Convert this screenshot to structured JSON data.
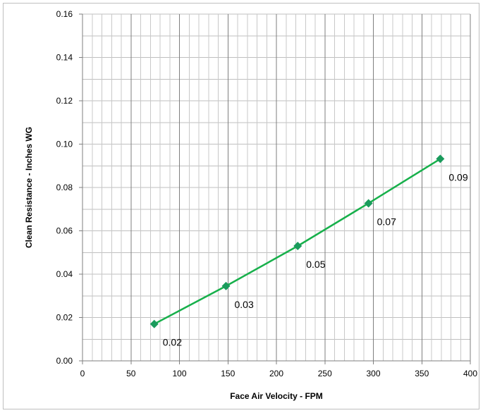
{
  "chart_data": {
    "type": "line",
    "title": "",
    "xlabel": "Face Air Velocity - FPM",
    "ylabel": "Clean Resistance - Inches WG",
    "xlim": [
      0,
      400
    ],
    "ylim": [
      0,
      0.16
    ],
    "x_ticks": [
      "0",
      "50",
      "100",
      "150",
      "200",
      "250",
      "300",
      "350",
      "400"
    ],
    "y_ticks": [
      "0.00",
      "0.02",
      "0.04",
      "0.06",
      "0.08",
      "0.10",
      "0.12",
      "0.14",
      "0.16"
    ],
    "x_tick_values": [
      0,
      50,
      100,
      150,
      200,
      250,
      300,
      350,
      400
    ],
    "y_tick_values": [
      0,
      0.02,
      0.04,
      0.06,
      0.08,
      0.1,
      0.12,
      0.14,
      0.16
    ],
    "grid": true,
    "minor_grid_x_step": 10,
    "major_grid_x_step": 50,
    "grid_y_step": 0.01,
    "legend": "none",
    "series": [
      {
        "x": [
          74,
          148,
          222,
          295,
          369
        ],
        "values": [
          0.017,
          0.0345,
          0.053,
          0.0727,
          0.0932
        ],
        "labels": [
          "0.02",
          "0.03",
          "0.05",
          "0.07",
          "0.09"
        ],
        "color": "#17b04b",
        "marker": "diamond",
        "marker_color": "#1a9b5c"
      }
    ]
  }
}
